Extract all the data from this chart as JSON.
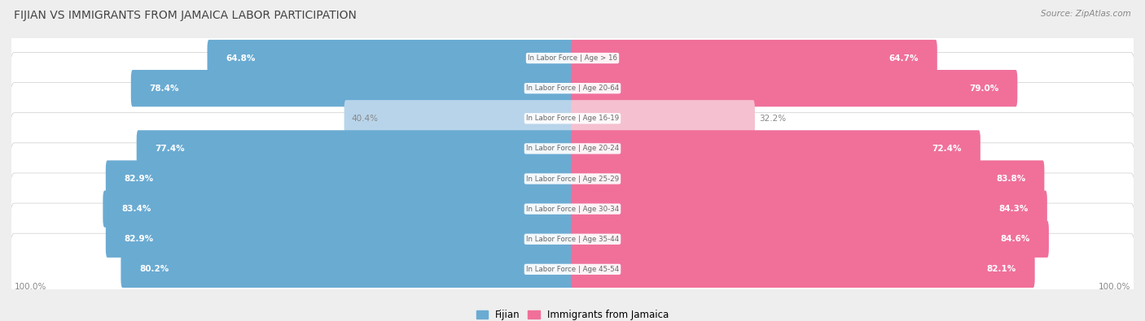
{
  "title": "FIJIAN VS IMMIGRANTS FROM JAMAICA LABOR PARTICIPATION",
  "source": "Source: ZipAtlas.com",
  "categories": [
    "In Labor Force | Age > 16",
    "In Labor Force | Age 20-64",
    "In Labor Force | Age 16-19",
    "In Labor Force | Age 20-24",
    "In Labor Force | Age 25-29",
    "In Labor Force | Age 30-34",
    "In Labor Force | Age 35-44",
    "In Labor Force | Age 45-54"
  ],
  "fijian_values": [
    64.8,
    78.4,
    40.4,
    77.4,
    82.9,
    83.4,
    82.9,
    80.2
  ],
  "jamaica_values": [
    64.7,
    79.0,
    32.2,
    72.4,
    83.8,
    84.3,
    84.6,
    82.1
  ],
  "fijian_color": "#6aabd2",
  "fijian_color_light": "#b8d4ea",
  "jamaica_color": "#f0709a",
  "jamaica_color_light": "#f5c0d0",
  "bg_color": "#eeeeee",
  "row_bg": "#f8f8f8",
  "title_color": "#444444",
  "source_color": "#888888",
  "legend_fijian": "Fijian",
  "legend_jamaica": "Immigrants from Jamaica",
  "axis_label": "100.0%",
  "max_val": 100.0,
  "center_label_bg": "#ffffff",
  "center_label_color": "#666666",
  "value_label_color_white": "#ffffff",
  "value_label_color_dark": "#888888"
}
